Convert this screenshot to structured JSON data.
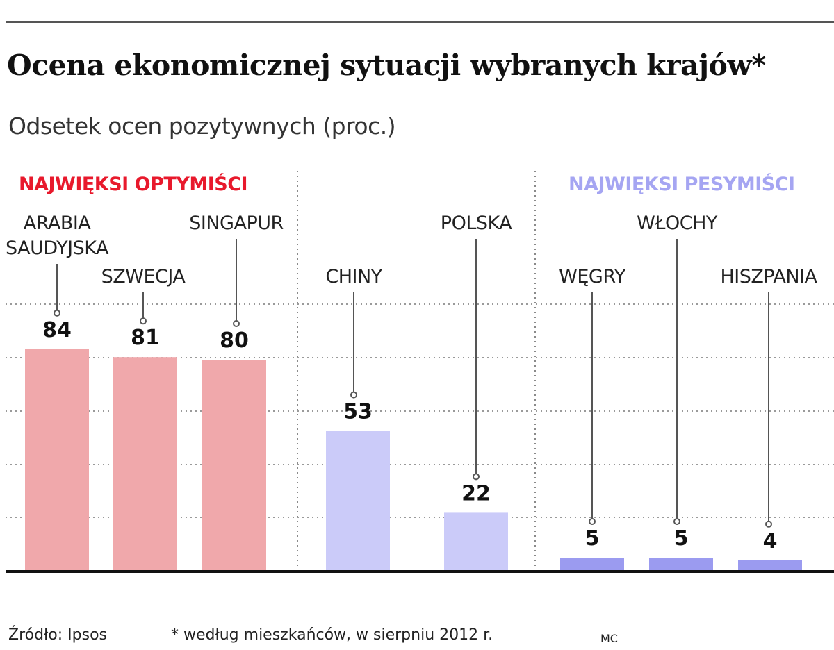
{
  "title": "Ocena ekonomicznej sytuacji wybranych krajów*",
  "subtitle": "Odsetek ocen pozytywnych (proc.)",
  "groups": {
    "optimists": "NAJWIĘKSI OPTYMIŚCI",
    "pessimists": "NAJWIĘKSI PESYMIŚCI"
  },
  "footer": {
    "source": "Źródło: Ipsos",
    "note": "* według mieszkańców, w sierpniu 2012 r.",
    "author": "MC"
  },
  "colors": {
    "optimists": "#f0a8ab",
    "middle": "#cbcbf9",
    "pessimists": "#9b9bf0",
    "optimists_label": "#e8192c",
    "pessimists_label": "#a5a5f2"
  },
  "chart_data": {
    "type": "bar",
    "title": "Ocena ekonomicznej sytuacji wybranych krajów*",
    "subtitle": "Odsetek ocen pozytywnych (proc.)",
    "ylim": [
      0,
      100
    ],
    "grid": true,
    "categories": [
      "ARABIA SAUDYJSKA",
      "SZWECJA",
      "SINGAPUR",
      "CHINY",
      "POLSKA",
      "WĘGRY",
      "WŁOCHY",
      "HISZPANIA"
    ],
    "values": [
      84,
      81,
      80,
      53,
      22,
      5,
      5,
      4
    ],
    "value_labels": [
      "84",
      "81",
      "80",
      "53",
      "22",
      "5",
      "5",
      "4"
    ],
    "label_lines": [
      [
        "ARABIA",
        "SAUDYJSKA"
      ],
      [
        "SZWECJA"
      ],
      [
        "SINGAPUR"
      ],
      [
        "CHINY"
      ],
      [
        "POLSKA"
      ],
      [
        "WĘGRY"
      ],
      [
        "WŁOCHY"
      ],
      [
        "HISZPANIA"
      ]
    ],
    "bar_groups": [
      "optimists",
      "optimists",
      "optimists",
      "middle",
      "middle",
      "pessimists",
      "pessimists",
      "pessimists"
    ]
  }
}
